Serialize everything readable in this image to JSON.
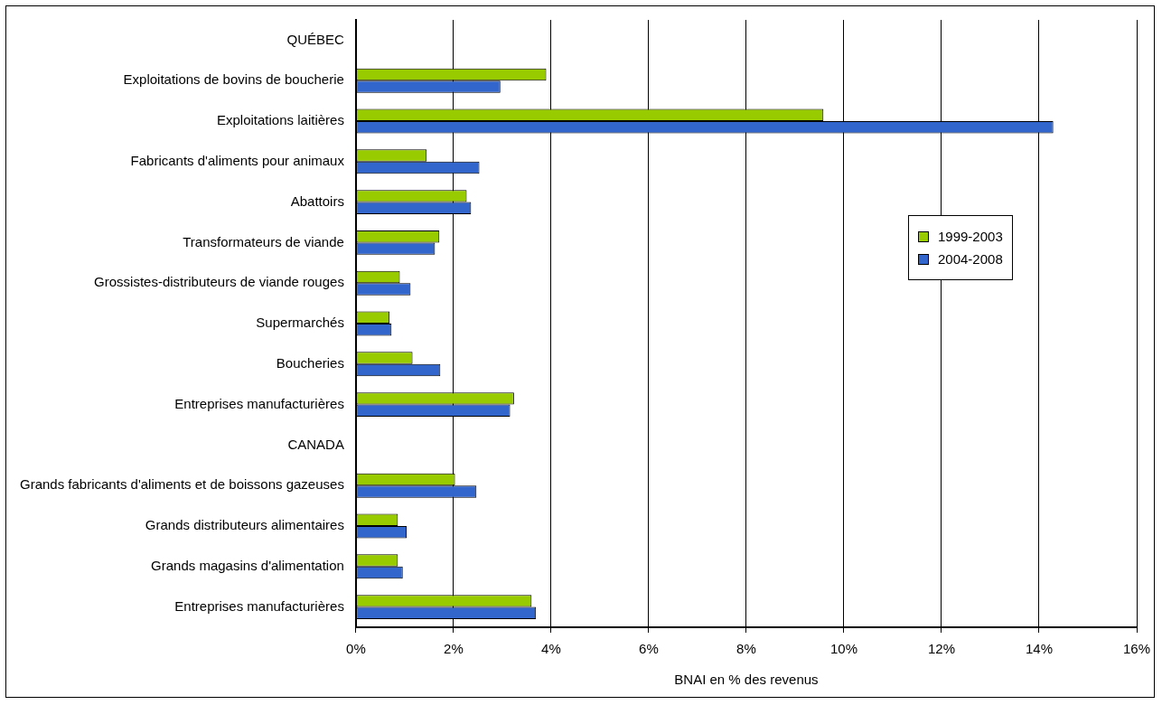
{
  "chart_data": {
    "type": "bar",
    "orientation": "horizontal",
    "xlabel": "BNAI en % des revenus",
    "categories": [
      "QUÉBEC",
      "Exploitations de bovins de boucherie",
      "Exploitations laitières",
      "Fabricants d'aliments pour animaux",
      "Abattoirs",
      "Transformateurs de viande",
      "Grossistes-distributeurs de viande rouges",
      "Supermarchés",
      "Boucheries",
      "Entreprises manufacturières",
      "CANADA",
      "Grands fabricants d'aliments et de boissons gazeuses",
      "Grands distributeurs alimentaires",
      "Grands magasins d'alimentation",
      "Entreprises manufacturières"
    ],
    "series": [
      {
        "name": "1999-2003",
        "color": "#99cc00",
        "values": [
          null,
          3.9,
          9.58,
          1.45,
          2.27,
          1.71,
          0.9,
          0.69,
          1.16,
          3.24,
          null,
          2.03,
          0.86,
          0.86,
          3.6
        ]
      },
      {
        "name": "2004-2008",
        "color": "#3366cc",
        "values": [
          null,
          2.96,
          14.29,
          2.53,
          2.36,
          1.62,
          1.12,
          0.73,
          1.73,
          3.16,
          null,
          2.47,
          1.04,
          0.96,
          3.69
        ]
      }
    ],
    "xlim": [
      0,
      16
    ],
    "xticks": [
      {
        "value": 0,
        "label": "0%"
      },
      {
        "value": 2,
        "label": "2%"
      },
      {
        "value": 4,
        "label": "4%"
      },
      {
        "value": 6,
        "label": "6%"
      },
      {
        "value": 8,
        "label": "8%"
      },
      {
        "value": 10,
        "label": "10%"
      },
      {
        "value": 12,
        "label": "12%"
      },
      {
        "value": 14,
        "label": "14%"
      },
      {
        "value": 16,
        "label": "16%"
      }
    ],
    "grid": "x",
    "legend": "right"
  }
}
